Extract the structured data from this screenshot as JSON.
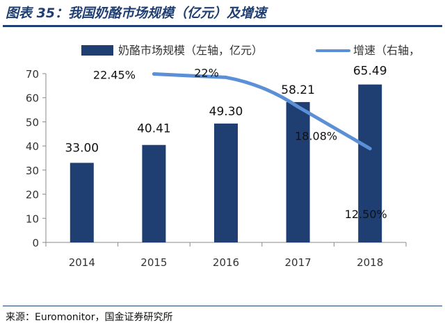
{
  "figure": {
    "title": "图表 35：我国奶酪市场规模（亿元）及增速",
    "source": "来源：Euromonitor，国金证券研究所"
  },
  "chart_data": {
    "type": "bar",
    "categories": [
      "2014",
      "2015",
      "2016",
      "2017",
      "2018"
    ],
    "series": [
      {
        "name": "奶酪市场规模（左轴，亿元）",
        "type": "bar",
        "axis": "left",
        "values": [
          33.0,
          40.41,
          49.3,
          58.21,
          65.49
        ],
        "labels": [
          "33.00",
          "40.41",
          "49.30",
          "58.21",
          "65.49"
        ],
        "color": "#1f3f73"
      },
      {
        "name": "增速（右轴，",
        "type": "line",
        "axis": "right",
        "x": [
          "2015",
          "2016",
          "2017",
          "2018"
        ],
        "values": [
          22.45,
          22.0,
          18.08,
          12.5
        ],
        "labels": [
          "22.45%",
          "22%",
          "18.08%",
          "12.50%"
        ],
        "color": "#5b8fd6"
      }
    ],
    "yticks": [
      "0",
      "10",
      "20",
      "30",
      "40",
      "50",
      "60",
      "70"
    ],
    "ylim": [
      0,
      70
    ],
    "grid": false,
    "legend": "top"
  }
}
